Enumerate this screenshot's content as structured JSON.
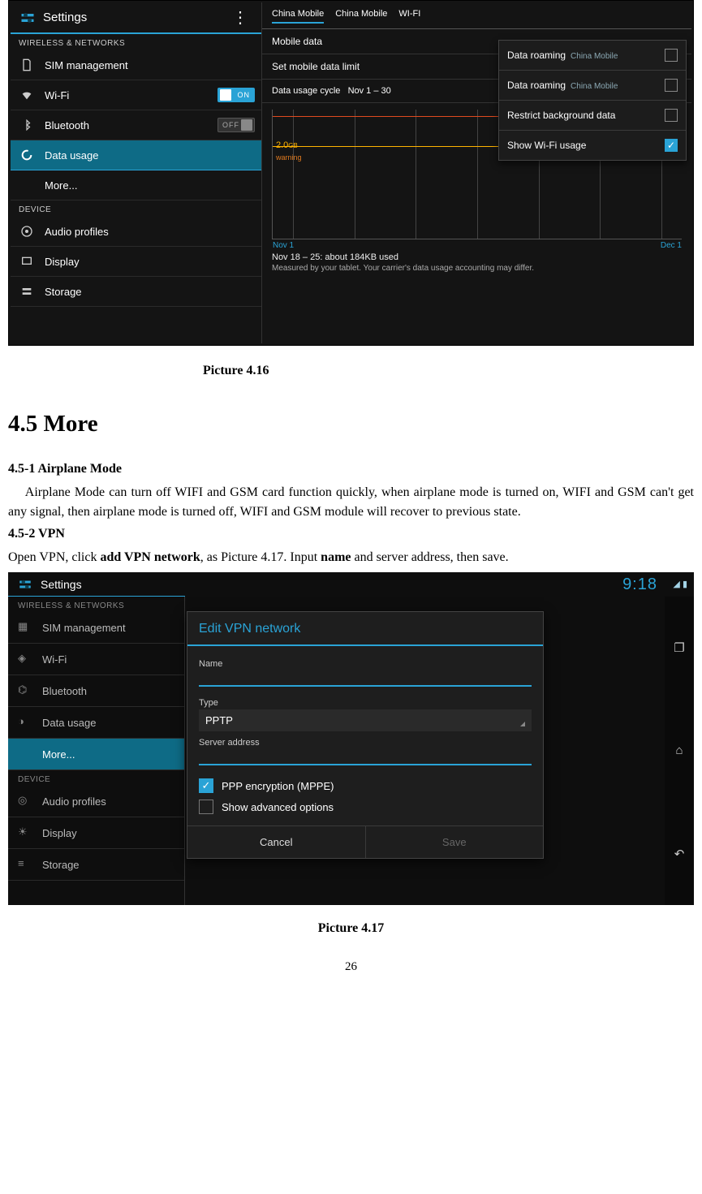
{
  "fig1": {
    "header": {
      "title": "Settings"
    },
    "sections": {
      "wireless_label": "WIRELESS & NETWORKS",
      "device_label": "DEVICE"
    },
    "sidebar": {
      "sim": "SIM management",
      "wifi": "Wi-Fi",
      "wifi_toggle": "ON",
      "bt": "Bluetooth",
      "bt_toggle": "OFF",
      "data": "Data usage",
      "more": "More...",
      "audio": "Audio profiles",
      "display": "Display",
      "storage": "Storage"
    },
    "tabs": {
      "t1": "China Mobile",
      "t2": "China Mobile",
      "t3": "WI-FI"
    },
    "rows": {
      "mobile_data": "Mobile data",
      "set_limit": "Set mobile data limit",
      "cycle_prefix": "Data usage cycle",
      "cycle_value": "Nov 1 – 30"
    },
    "chart": {
      "y_value": "2.0",
      "y_unit": "GB",
      "warning_label": "warning",
      "limit_pos_pct": 5,
      "warn_pos_pct": 28,
      "vlines_pct": [
        5,
        20,
        35,
        50,
        65,
        80,
        95
      ],
      "x_start": "Nov 1",
      "x_end": "Dec 1",
      "limit_color": "#e04a1f",
      "warn_color": "#ffb300"
    },
    "usage": {
      "line1": "Nov 18 – 25: about 184KB used",
      "line2": "Measured by your tablet. Your carrier's data usage accounting may differ."
    },
    "menu": {
      "roam1_label": "Data roaming",
      "roam1_sub": "China Mobile",
      "roam2_label": "Data roaming",
      "roam2_sub": "China Mobile",
      "restrict": "Restrict background data",
      "wifi_usage": "Show Wi-Fi usage",
      "wifi_checked": true
    }
  },
  "caption1": "Picture 4.16",
  "section_title": "4.5 More",
  "sub1_title": "4.5-1 Airplane Mode",
  "para1": "Airplane Mode can turn off WIFI and GSM card function quickly, when airplane mode is turned on, WIFI and GSM can't get any signal, then airplane mode is turned off, WIFI and GSM module will recover to previous state.",
  "sub2_title": "4.5-2 VPN",
  "para2_pre": " Open VPN, click ",
  "para2_b1": "add VPN network",
  "para2_mid": ", as Picture 4.17. Input ",
  "para2_b2": "name",
  "para2_post": " and server address, then save.",
  "fig2": {
    "header": "Settings",
    "clock": "9:18",
    "sections": {
      "wireless": "WIRELESS & NETWORKS",
      "device": "DEVICE"
    },
    "sidebar": {
      "sim": "SIM management",
      "wifi": "Wi-Fi",
      "bt": "Bluetooth",
      "data": "Data usage",
      "more": "More...",
      "audio": "Audio profiles",
      "display": "Display",
      "storage": "Storage"
    },
    "dialog": {
      "title": "Edit VPN network",
      "name_label": "Name",
      "type_label": "Type",
      "type_value": "PPTP",
      "server_label": "Server address",
      "ppp": "PPP encryption (MPPE)",
      "ppp_checked": true,
      "advanced": "Show advanced options",
      "advanced_checked": false,
      "cancel": "Cancel",
      "save": "Save"
    }
  },
  "caption2": "Picture 4.17",
  "page_number": "26"
}
